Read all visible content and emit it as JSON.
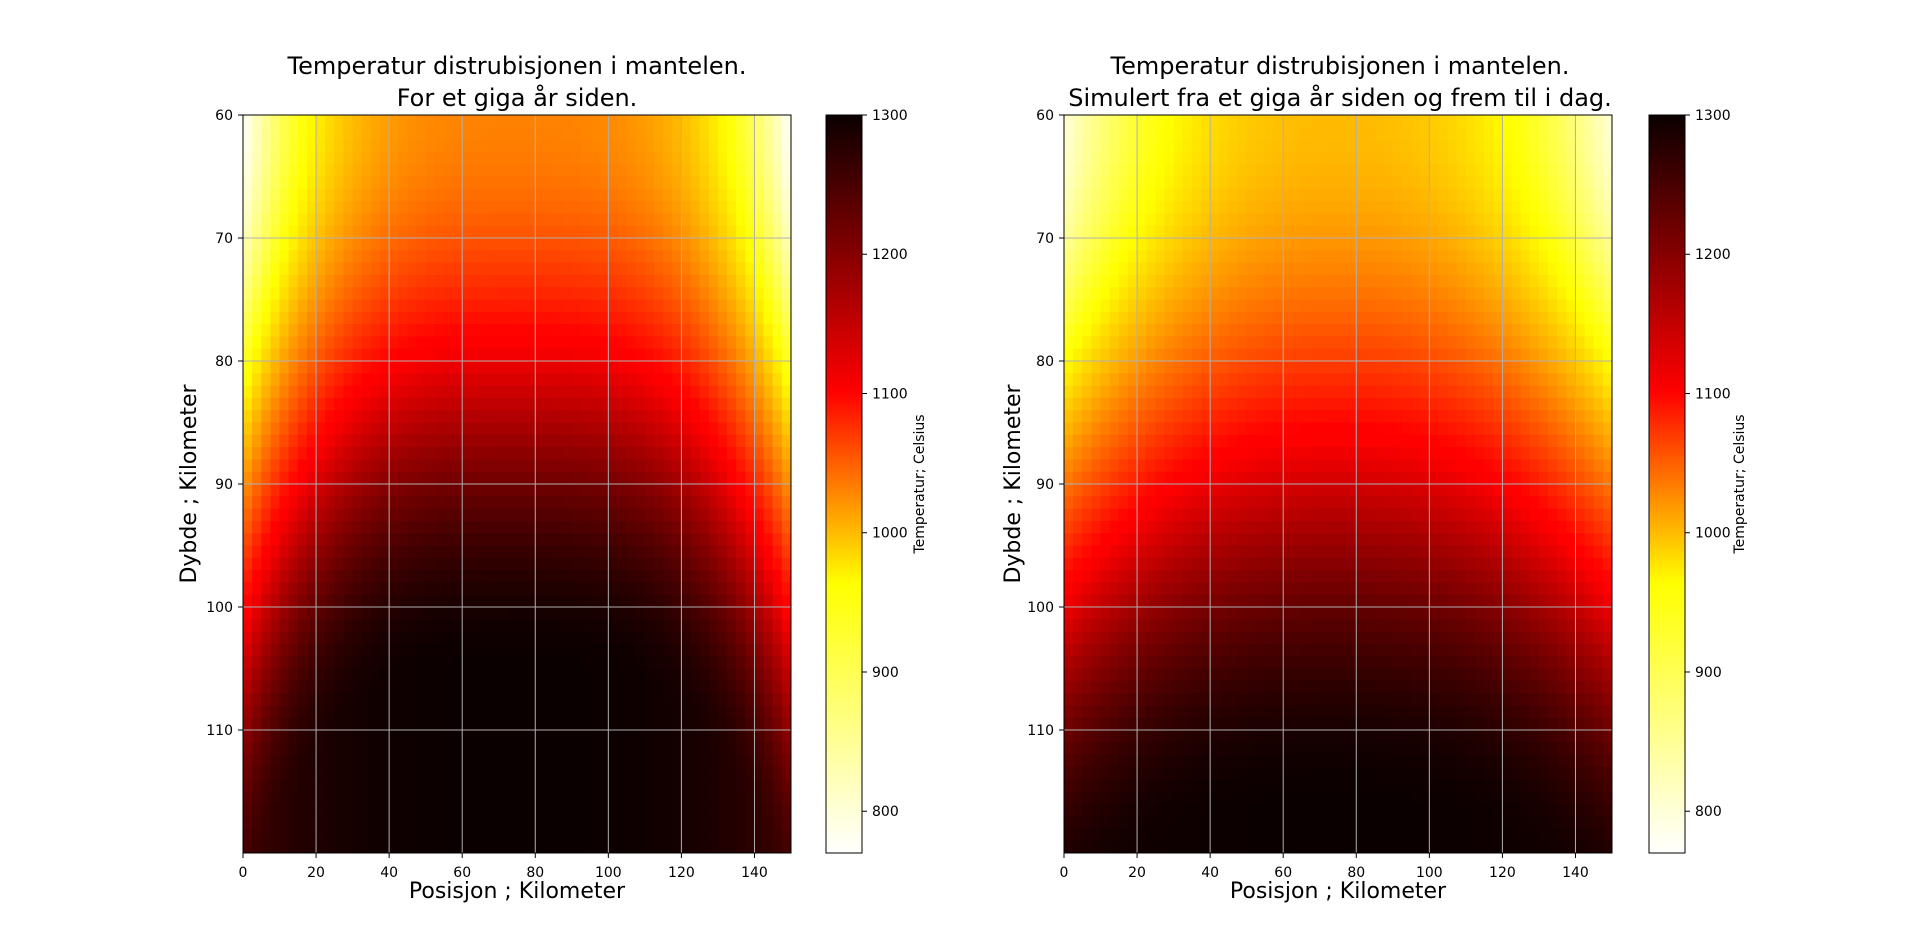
{
  "chart_data": [
    {
      "type": "heatmap",
      "title_line1": "Temperatur distrubisjonen i mantelen.",
      "title_line2": "For et giga år siden.",
      "xlabel": "Posisjon ; Kilometer",
      "ylabel": "Dybde ; Kilometer",
      "xlim": [
        0,
        150
      ],
      "ylim": [
        60,
        120
      ],
      "xticks": [
        "0",
        "20",
        "40",
        "60",
        "80",
        "100",
        "120",
        "140"
      ],
      "yticks": [
        "60",
        "70",
        "80",
        "90",
        "100",
        "110"
      ],
      "grid": true,
      "colormap": "hot_r",
      "colorbar": {
        "label": "Temperatur; Celsius",
        "range": [
          770,
          1300
        ],
        "ticks": [
          "800",
          "900",
          "1000",
          "1100",
          "1200",
          "1300"
        ]
      },
      "field_model": {
        "surface_center_temp": 1005,
        "surface_edge_temp": 770,
        "center_peak_temp": 1300,
        "edge_temp_at_bottom": 1260,
        "center_reaches_max_depth": 105,
        "edge_reaches_max_depth": 125,
        "x_profile_exponent": 3.2
      }
    },
    {
      "type": "heatmap",
      "title_line1": "Temperatur distrubisjonen i mantelen.",
      "title_line2": "Simulert fra et giga år siden og frem til i dag.",
      "xlabel": "Posisjon ; Kilometer",
      "ylabel": "Dybde ; Kilometer",
      "xlim": [
        0,
        150
      ],
      "ylim": [
        60,
        120
      ],
      "xticks": [
        "0",
        "20",
        "40",
        "60",
        "80",
        "100",
        "120",
        "140"
      ],
      "yticks": [
        "60",
        "70",
        "80",
        "90",
        "100",
        "110"
      ],
      "grid": true,
      "colormap": "hot_r",
      "colorbar": {
        "label": "Temperatur; Celsius",
        "range": [
          770,
          1300
        ],
        "ticks": [
          "800",
          "900",
          "1000",
          "1100",
          "1200",
          "1300"
        ]
      },
      "field_model": {
        "surface_center_temp": 960,
        "surface_edge_temp": 790,
        "center_peak_temp": 1300,
        "edge_temp_at_bottom": 1290,
        "center_reaches_max_depth": 116,
        "edge_reaches_max_depth": 125,
        "x_profile_exponent": 2.4
      }
    }
  ]
}
